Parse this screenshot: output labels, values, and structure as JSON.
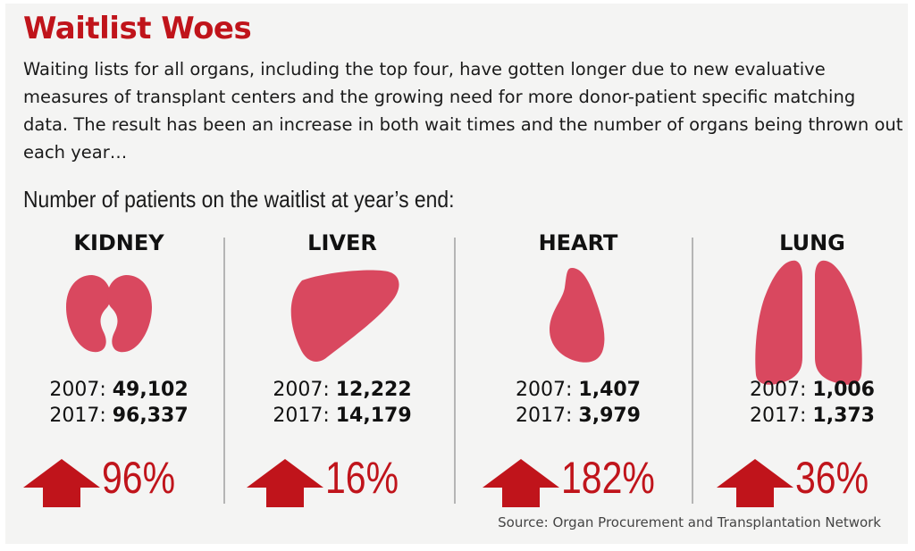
{
  "title": "Waitlist Woes",
  "intro": "Waiting lists for all organs, including the top four, have gotten longer due to new evaluative measures of transplant centers and the growing need for more donor-patient specific matching data. The result has been an increase in both wait times and the number of organs being thrown out each year…",
  "subhead": "Number of patients on the waitlist at year’s end:",
  "organs": [
    {
      "name": "KIDNEY",
      "icon": "kidney-icon",
      "y2007_label": "2007:",
      "y2007": "49,102",
      "y2017_label": "2017:",
      "y2017": "96,337",
      "change": "96%"
    },
    {
      "name": "LIVER",
      "icon": "liver-icon",
      "y2007_label": "2007:",
      "y2007": "12,222",
      "y2017_label": "2017:",
      "y2017": "14,179",
      "change": "16%"
    },
    {
      "name": "HEART",
      "icon": "heart-icon",
      "y2007_label": "2007:",
      "y2007": "1,407",
      "y2017_label": "2017:",
      "y2017": "3,979",
      "change": "182%"
    },
    {
      "name": "LUNG",
      "icon": "lung-icon",
      "y2007_label": "2007:",
      "y2007": "1,006",
      "y2017_label": "2017:",
      "y2017": "1,373",
      "change": "36%"
    }
  ],
  "source": "Source: Organ Procurement and Transplantation Network",
  "colors": {
    "accent": "#c0141b",
    "organ": "#d9485f",
    "background": "#f4f4f3"
  }
}
